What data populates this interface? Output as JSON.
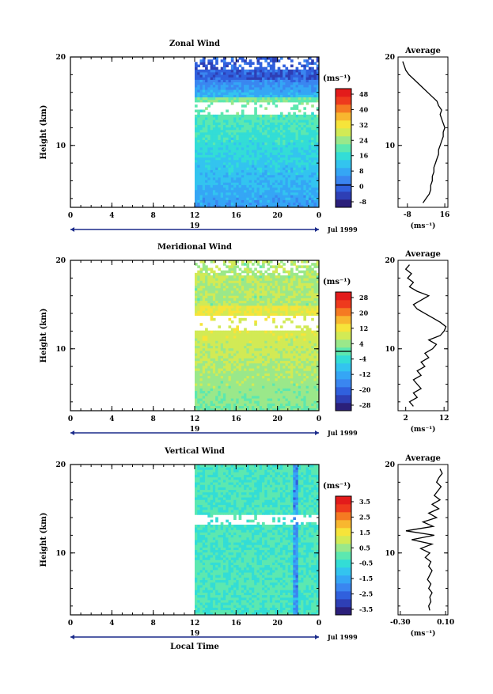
{
  "figure": {
    "shared_xlabel": "Local Time",
    "date_label": "Jul 1999",
    "day_label": "19",
    "xticks": [
      "0",
      "4",
      "8",
      "12",
      "16",
      "20",
      "0"
    ]
  },
  "palette": [
    "#2b1f7a",
    "#2e3fb5",
    "#3060dd",
    "#3a86f0",
    "#35a6f5",
    "#33c4ef",
    "#33ddd6",
    "#5ce8b0",
    "#9ae88a",
    "#d2ea55",
    "#f6e43a",
    "#f8b72f",
    "#f57a22",
    "#ee3a1d",
    "#e31b1b"
  ],
  "chart_data": [
    {
      "type": "heatmap",
      "title": "Zonal Wind",
      "ylabel": "Height (km)",
      "xlabel": "",
      "xlim": [
        0,
        24
      ],
      "ylim": [
        3,
        20
      ],
      "yticks": [
        "10",
        "20"
      ],
      "data_x_range": [
        12,
        24
      ],
      "units": "(ms⁻¹)",
      "colorbar": {
        "ticks": [
          "48",
          "40",
          "32",
          "24",
          "16",
          "8",
          "0",
          "-8"
        ],
        "range": [
          -12,
          52
        ],
        "zero_line": 0
      },
      "profile": {
        "title": "Average",
        "xticks": [
          "-8",
          "16"
        ],
        "xlim": [
          -14,
          18
        ],
        "xunit": "(ms⁻¹)",
        "yticks": [
          "10",
          "20"
        ],
        "heights": [
          3.5,
          4,
          4.5,
          5,
          5.5,
          6,
          6.5,
          7,
          7.5,
          8,
          8.5,
          9,
          9.5,
          10,
          10.5,
          11,
          11.5,
          12,
          12.5,
          13,
          13.5,
          14,
          14.5,
          15,
          15.5,
          16,
          16.5,
          17,
          17.5,
          18,
          18.5,
          19,
          19.5
        ],
        "values": [
          2,
          4,
          6,
          7,
          7,
          8,
          8,
          9,
          9,
          10,
          11,
          12,
          12,
          13,
          14,
          15,
          15,
          16,
          15,
          14,
          13,
          14,
          12,
          11,
          8,
          5,
          2,
          -1,
          -4,
          -7,
          -9,
          -10,
          -11
        ]
      }
    },
    {
      "type": "heatmap",
      "title": "Meridional Wind",
      "ylabel": "Height (km)",
      "xlabel": "",
      "xlim": [
        0,
        24
      ],
      "ylim": [
        3,
        20
      ],
      "yticks": [
        "10",
        "20"
      ],
      "data_x_range": [
        12,
        24
      ],
      "units": "(ms⁻¹)",
      "colorbar": {
        "ticks": [
          "28",
          "20",
          "12",
          "4",
          "-4",
          "-12",
          "-20",
          "-28"
        ],
        "range": [
          -32,
          32
        ],
        "zero_line": 0
      },
      "profile": {
        "title": "Average",
        "xticks": [
          "2",
          "12"
        ],
        "xlim": [
          0,
          13
        ],
        "xunit": "(ms⁻¹)",
        "yticks": [
          "10",
          "20"
        ],
        "heights": [
          3.5,
          4,
          4.5,
          5,
          5.5,
          6,
          6.5,
          7,
          7.5,
          8,
          8.5,
          9,
          9.5,
          10,
          10.5,
          11,
          11.5,
          12,
          12.5,
          13,
          13.5,
          14,
          14.5,
          15,
          15.5,
          16,
          16.5,
          17,
          17.5,
          18,
          18.5,
          19,
          19.5
        ],
        "values": [
          4,
          3,
          5,
          4,
          6,
          5,
          4,
          6,
          5,
          7,
          6,
          8,
          7,
          9,
          10,
          8,
          11,
          12,
          12.5,
          11,
          9,
          7,
          5,
          4,
          6,
          8,
          5,
          3,
          4,
          2.5,
          3.5,
          2,
          3
        ]
      }
    },
    {
      "type": "heatmap",
      "title": "Vertical Wind",
      "ylabel": "Height (km)",
      "xlabel": "Local Time",
      "xlim": [
        0,
        24
      ],
      "ylim": [
        3,
        20
      ],
      "yticks": [
        "10",
        "20"
      ],
      "data_x_range": [
        12,
        24
      ],
      "units": "(ms⁻¹)",
      "colorbar": {
        "ticks": [
          "3.5",
          "2.5",
          "1.5",
          "0.5",
          "-0.5",
          "-1.5",
          "-2.5",
          "-3.5"
        ],
        "range": [
          -4,
          4
        ],
        "zero_line": null
      },
      "profile": {
        "title": "Average",
        "xticks": [
          "-0.30",
          "0.10"
        ],
        "xlim": [
          -0.32,
          0.12
        ],
        "xunit": "(ms⁻¹)",
        "yticks": [
          "10",
          "20"
        ],
        "heights": [
          3.5,
          4,
          4.5,
          5,
          5.5,
          6,
          6.5,
          7,
          7.5,
          8,
          8.5,
          9,
          9.5,
          10,
          10.5,
          11,
          11.5,
          12,
          12.5,
          13,
          13.5,
          14,
          14.5,
          15,
          15.5,
          16,
          16.5,
          17,
          17.5,
          18,
          18.5,
          19,
          19.5
        ],
        "values": [
          -0.04,
          -0.05,
          -0.03,
          -0.04,
          -0.02,
          -0.05,
          -0.03,
          -0.06,
          -0.04,
          -0.02,
          -0.05,
          -0.03,
          -0.08,
          -0.04,
          -0.12,
          -0.02,
          -0.2,
          0.0,
          -0.25,
          -0.01,
          -0.1,
          0.02,
          -0.05,
          0.04,
          -0.02,
          0.05,
          0.0,
          0.03,
          0.06,
          0.02,
          0.04,
          0.07,
          0.05
        ]
      }
    }
  ]
}
